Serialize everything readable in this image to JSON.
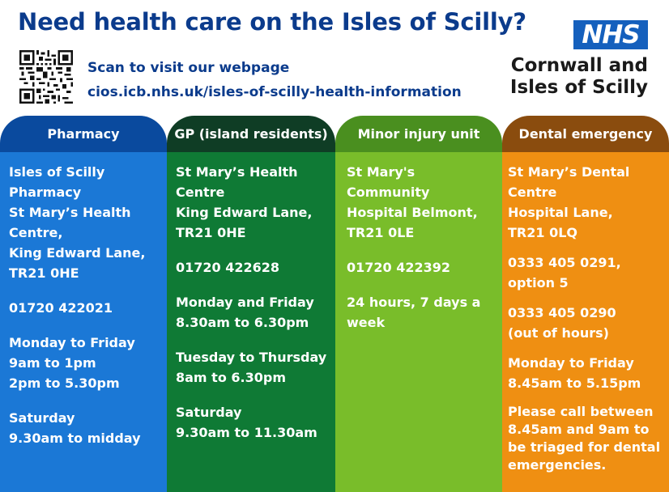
{
  "header": {
    "title": "Need health care on the Isles of Scilly?",
    "scan_text": "Scan to visit our webpage",
    "url_text": "cios.icb.nhs.uk/isles-of-scilly-health-information",
    "logo_text": "NHS",
    "org_line1": "Cornwall and",
    "org_line2": "Isles of Scilly"
  },
  "colors": {
    "title": "#0b3b8c",
    "nhs_blue": "#1560bd",
    "pharmacy": "#1b78d6",
    "gp": "#0f7a35",
    "minor_injury": "#79bd2a",
    "dental": "#ef8f12"
  },
  "columns": {
    "pharmacy": {
      "heading": "Pharmacy",
      "address": [
        "Isles of Scilly",
        "Pharmacy",
        "St Mary’s Health",
        "Centre,",
        "King Edward Lane,",
        "TR21 0HE"
      ],
      "phone": "01720 422021",
      "hours1": [
        "Monday to Friday",
        "9am to 1pm",
        "2pm to 5.30pm"
      ],
      "hours2": [
        "Saturday",
        "9.30am to midday"
      ]
    },
    "gp": {
      "heading": "GP (island residents)",
      "address": [
        "St Mary’s Health",
        "Centre",
        "King Edward Lane,",
        "TR21 0HE"
      ],
      "phone": "01720 422628",
      "hours1": [
        "Monday and Friday",
        "8.30am to 6.30pm"
      ],
      "hours2": [
        "Tuesday to Thursday",
        "8am to 6.30pm"
      ],
      "hours3": [
        "Saturday",
        "9.30am to 11.30am"
      ]
    },
    "minor_injury": {
      "heading": "Minor injury unit",
      "address": [
        "St Mary's",
        "Community",
        "Hospital Belmont,",
        "TR21 0LE"
      ],
      "phone": "01720 422392",
      "hours": [
        "24 hours, 7 days a",
        "week"
      ]
    },
    "dental": {
      "heading": "Dental emergency",
      "address": [
        "St Mary’s Dental",
        "Centre",
        "Hospital Lane,",
        "TR21 0LQ"
      ],
      "phone1": [
        "0333 405 0291,",
        "option 5"
      ],
      "phone2": [
        "0333 405 0290",
        "(out of hours)"
      ],
      "hours": [
        "Monday to Friday",
        "8.45am to 5.15pm"
      ],
      "note": [
        "Please call between",
        "8.45am and 9am to",
        "be triaged for dental",
        "emergencies."
      ]
    }
  }
}
